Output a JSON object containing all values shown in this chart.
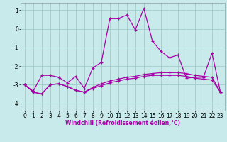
{
  "xlabel": "Windchill (Refroidissement éolien,°C)",
  "bg_color": "#c8eaea",
  "grid_color": "#a0cccc",
  "line_color": "#aa00aa",
  "marker": "+",
  "ylim": [
    -4.4,
    1.4
  ],
  "xlim": [
    -0.5,
    23.5
  ],
  "yticks": [
    -4,
    -3,
    -2,
    -1,
    0,
    1
  ],
  "xticks": [
    0,
    1,
    2,
    3,
    4,
    5,
    6,
    7,
    8,
    9,
    10,
    11,
    12,
    13,
    14,
    15,
    16,
    17,
    18,
    19,
    20,
    21,
    22,
    23
  ],
  "line1_x": [
    0,
    1,
    2,
    3,
    4,
    5,
    6,
    7,
    8,
    9,
    10,
    11,
    12,
    13,
    14,
    15,
    16,
    17,
    18,
    19,
    20,
    21,
    22,
    23
  ],
  "line1_y": [
    -3.0,
    -3.35,
    -2.5,
    -2.5,
    -2.6,
    -2.9,
    -2.55,
    -3.2,
    -2.1,
    -1.8,
    0.55,
    0.55,
    0.75,
    -0.05,
    1.1,
    -0.65,
    -1.2,
    -1.55,
    -1.4,
    -2.65,
    -2.6,
    -2.6,
    -1.3,
    -3.4
  ],
  "line2_x": [
    0,
    1,
    2,
    3,
    4,
    5,
    6,
    7,
    8,
    9,
    10,
    11,
    12,
    13,
    14,
    15,
    16,
    17,
    18,
    19,
    20,
    21,
    22,
    23
  ],
  "line2_y": [
    -3.0,
    -3.4,
    -3.5,
    -3.0,
    -2.95,
    -3.1,
    -3.3,
    -3.4,
    -3.2,
    -3.05,
    -2.9,
    -2.8,
    -2.7,
    -2.65,
    -2.55,
    -2.5,
    -2.5,
    -2.5,
    -2.5,
    -2.55,
    -2.65,
    -2.7,
    -2.75,
    -3.4
  ],
  "line3_x": [
    0,
    1,
    2,
    3,
    4,
    5,
    6,
    7,
    8,
    9,
    10,
    11,
    12,
    13,
    14,
    15,
    16,
    17,
    18,
    19,
    20,
    21,
    22,
    23
  ],
  "line3_y": [
    -3.0,
    -3.4,
    -3.5,
    -3.0,
    -2.95,
    -3.1,
    -3.3,
    -3.4,
    -3.15,
    -2.95,
    -2.8,
    -2.7,
    -2.6,
    -2.55,
    -2.45,
    -2.4,
    -2.35,
    -2.35,
    -2.35,
    -2.4,
    -2.5,
    -2.55,
    -2.6,
    -3.4
  ],
  "xlabel_fontsize": 5.5,
  "tick_fontsize": 5.5
}
